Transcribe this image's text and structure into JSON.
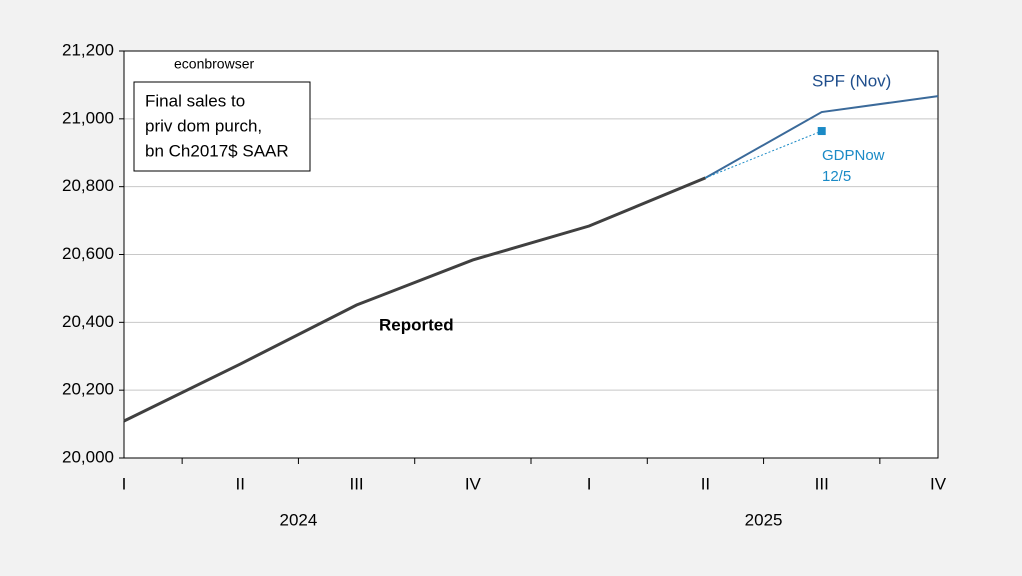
{
  "chart_data": {
    "type": "line",
    "watermark": "econbrowser",
    "box_lines": [
      "Final sales to",
      "priv dom purch,",
      "bn Ch2017$ SAAR"
    ],
    "categories": [
      "I",
      "II",
      "III",
      "IV",
      "I",
      "II",
      "III",
      "IV"
    ],
    "year_labels": [
      "2024",
      "2025"
    ],
    "ylim": [
      20000,
      21200
    ],
    "yticks": [
      {
        "value": 20000,
        "label": "20,000"
      },
      {
        "value": 20200,
        "label": "20,200"
      },
      {
        "value": 20400,
        "label": "20,400"
      },
      {
        "value": 20600,
        "label": "20,600"
      },
      {
        "value": 20800,
        "label": "20,800"
      },
      {
        "value": 21000,
        "label": "21,000"
      },
      {
        "value": 21200,
        "label": "21,200"
      }
    ],
    "grid": true,
    "series": [
      {
        "name": "Reported",
        "color": "#404040",
        "values": [
          20109,
          20277,
          20451,
          20584,
          20684,
          20826,
          null,
          null
        ]
      },
      {
        "name": "SPF (Nov)",
        "color": "#3b6a9a",
        "values": [
          null,
          null,
          null,
          null,
          null,
          20826,
          21020,
          21067
        ]
      },
      {
        "name": "GDPNow",
        "subname": "12/5",
        "color": "#1a8ac6",
        "values": [
          null,
          null,
          null,
          null,
          null,
          20826,
          20964,
          null
        ]
      }
    ]
  }
}
